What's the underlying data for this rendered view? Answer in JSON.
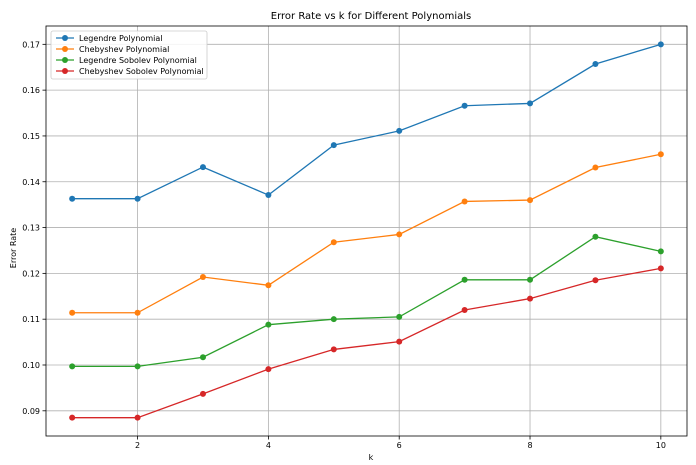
{
  "chart_data": {
    "type": "line",
    "title": "Error Rate vs k for Different Polynomials",
    "xlabel": "k",
    "ylabel": "Error Rate",
    "xlim": [
      0.6,
      10.4
    ],
    "ylim": [
      0.0845,
      0.174
    ],
    "xticks": [
      2,
      4,
      6,
      8,
      10
    ],
    "yticks": [
      0.09,
      0.1,
      0.11,
      0.12,
      0.13,
      0.14,
      0.15,
      0.16,
      0.17
    ],
    "grid": true,
    "legend_position": "top-left",
    "x": [
      1,
      2,
      3,
      4,
      5,
      6,
      7,
      8,
      9,
      10
    ],
    "series": [
      {
        "name": "Legendre Polynomial",
        "color": "#1f77b4",
        "values": [
          0.1363,
          0.1363,
          0.1432,
          0.1371,
          0.148,
          0.1511,
          0.1566,
          0.1571,
          0.1657,
          0.17
        ]
      },
      {
        "name": "Chebyshev Polynomial",
        "color": "#ff7f0e",
        "values": [
          0.1114,
          0.1114,
          0.1192,
          0.1174,
          0.1268,
          0.1285,
          0.1357,
          0.136,
          0.1431,
          0.146
        ]
      },
      {
        "name": "Legendre Sobolev Polynomial",
        "color": "#2ca02c",
        "values": [
          0.0997,
          0.0997,
          0.1017,
          0.1088,
          0.11,
          0.1105,
          0.1186,
          0.1186,
          0.128,
          0.1248
        ]
      },
      {
        "name": "Chebyshev Sobolev Polynomial",
        "color": "#d62728",
        "values": [
          0.0885,
          0.0885,
          0.0937,
          0.0991,
          0.1034,
          0.1051,
          0.112,
          0.1145,
          0.1185,
          0.1211
        ]
      }
    ]
  }
}
